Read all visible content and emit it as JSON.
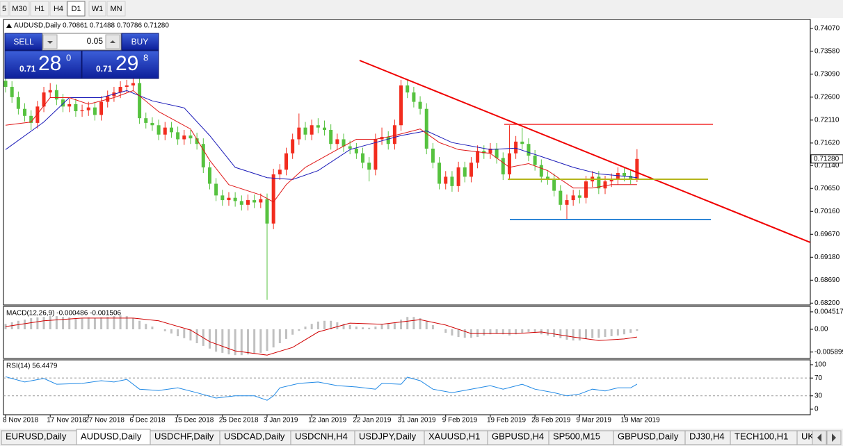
{
  "toolbar": [
    "5",
    "M30",
    "H1",
    "H4",
    "D1",
    "W1",
    "MN"
  ],
  "trade_panel": {
    "sell": "SELL",
    "lot": "0.05",
    "buy": "BUY",
    "bid": {
      "prefix": "0.71",
      "big": "28",
      "sup": "0"
    },
    "ask": {
      "prefix": "0.71",
      "big": "29",
      "sup": "8"
    }
  },
  "chart_data": {
    "type": "candlestick",
    "header": "AUDUSD,Daily  0.70861 0.71488 0.70786 0.71280",
    "up_color": "#f22c1e",
    "down_color": "#56c23f",
    "xlim": [
      -0.33,
      126.17
    ],
    "ylim": [
      0.6816,
      0.7426
    ],
    "yticks": [
      {
        "value": 0.7407,
        "label": "0.74070"
      },
      {
        "value": 0.7358,
        "label": "0.73580"
      },
      {
        "value": 0.7309,
        "label": "0.73090"
      },
      {
        "value": 0.726,
        "label": "0.72600"
      },
      {
        "value": 0.7211,
        "label": "0.72110"
      },
      {
        "value": 0.7162,
        "label": "0.71620"
      },
      {
        "value": 0.7114,
        "label": "0.71140"
      },
      {
        "value": 0.7065,
        "label": "0.70650"
      },
      {
        "value": 0.7016,
        "label": "0.70160"
      },
      {
        "value": 0.6967,
        "label": "0.69670"
      },
      {
        "value": 0.6918,
        "label": "0.69180"
      },
      {
        "value": 0.6869,
        "label": "0.68690"
      },
      {
        "value": 0.682,
        "label": "0.68200"
      }
    ],
    "last_price": {
      "value": 0.7128,
      "label": "0.71280"
    },
    "xticks": [
      {
        "value": 0,
        "label": "8 Nov 2018"
      },
      {
        "value": 7,
        "label": "17 Nov 2018"
      },
      {
        "value": 13,
        "label": "27 Nov 2018"
      },
      {
        "value": 20,
        "label": "6 Dec 2018"
      },
      {
        "value": 27,
        "label": "15 Dec 2018"
      },
      {
        "value": 34,
        "label": "25 Dec 2018"
      },
      {
        "value": 41,
        "label": "3 Jan 2019"
      },
      {
        "value": 48,
        "label": "12 Jan 2019"
      },
      {
        "value": 55,
        "label": "22 Jan 2019"
      },
      {
        "value": 62,
        "label": "31 Jan 2019"
      },
      {
        "value": 69,
        "label": "9 Feb 2019"
      },
      {
        "value": 76,
        "label": "19 Feb 2019"
      },
      {
        "value": 83,
        "label": "28 Feb 2019"
      },
      {
        "value": 90,
        "label": "9 Mar 2019"
      },
      {
        "value": 97,
        "label": "19 Mar 2019"
      }
    ],
    "ohlc": [
      [
        0.7295,
        0.7305,
        0.727,
        0.7282
      ],
      [
        0.7282,
        0.7294,
        0.7248,
        0.726
      ],
      [
        0.726,
        0.7272,
        0.7223,
        0.7235
      ],
      [
        0.7235,
        0.7247,
        0.7208,
        0.722
      ],
      [
        0.722,
        0.7232,
        0.719,
        0.7205
      ],
      [
        0.7205,
        0.7252,
        0.7193,
        0.724
      ],
      [
        0.724,
        0.7282,
        0.7228,
        0.727
      ],
      [
        0.727,
        0.729,
        0.7258,
        0.7275
      ],
      [
        0.7275,
        0.7287,
        0.7243,
        0.7255
      ],
      [
        0.7255,
        0.7267,
        0.7228,
        0.724
      ],
      [
        0.724,
        0.7257,
        0.7228,
        0.7245
      ],
      [
        0.7245,
        0.7257,
        0.7218,
        0.723
      ],
      [
        0.723,
        0.7244,
        0.7218,
        0.7232
      ],
      [
        0.7232,
        0.725,
        0.722,
        0.7238
      ],
      [
        0.7238,
        0.725,
        0.721,
        0.7222
      ],
      [
        0.7222,
        0.7262,
        0.721,
        0.725
      ],
      [
        0.725,
        0.7274,
        0.7238,
        0.7262
      ],
      [
        0.7262,
        0.7282,
        0.725,
        0.727
      ],
      [
        0.727,
        0.7294,
        0.7258,
        0.7282
      ],
      [
        0.7282,
        0.7297,
        0.727,
        0.7285
      ],
      [
        0.7285,
        0.7302,
        0.7273,
        0.729
      ],
      [
        0.729,
        0.7302,
        0.7203,
        0.7215
      ],
      [
        0.7215,
        0.7227,
        0.7193,
        0.7205
      ],
      [
        0.7205,
        0.7217,
        0.7188,
        0.72
      ],
      [
        0.72,
        0.7212,
        0.7168,
        0.718
      ],
      [
        0.718,
        0.7207,
        0.7168,
        0.7195
      ],
      [
        0.7195,
        0.7207,
        0.7173,
        0.7185
      ],
      [
        0.7185,
        0.7197,
        0.7158,
        0.717
      ],
      [
        0.717,
        0.719,
        0.7158,
        0.7178
      ],
      [
        0.7178,
        0.719,
        0.716,
        0.7172
      ],
      [
        0.7172,
        0.7184,
        0.7148,
        0.716
      ],
      [
        0.716,
        0.7172,
        0.7098,
        0.711
      ],
      [
        0.711,
        0.7122,
        0.7063,
        0.7075
      ],
      [
        0.7075,
        0.7087,
        0.7038,
        0.705
      ],
      [
        0.705,
        0.7062,
        0.7028,
        0.704
      ],
      [
        0.704,
        0.7057,
        0.7028,
        0.7045
      ],
      [
        0.7045,
        0.7057,
        0.7026,
        0.7038
      ],
      [
        0.7038,
        0.705,
        0.7018,
        0.703
      ],
      [
        0.703,
        0.7052,
        0.7018,
        0.704
      ],
      [
        0.704,
        0.7052,
        0.7023,
        0.7035
      ],
      [
        0.7035,
        0.7054,
        0.7023,
        0.7042
      ],
      [
        0.7042,
        0.7054,
        0.6827,
        0.699
      ],
      [
        0.699,
        0.7107,
        0.6978,
        0.7095
      ],
      [
        0.7095,
        0.7117,
        0.7083,
        0.7105
      ],
      [
        0.7105,
        0.7152,
        0.7093,
        0.714
      ],
      [
        0.714,
        0.7182,
        0.7128,
        0.717
      ],
      [
        0.717,
        0.7225,
        0.7158,
        0.7195
      ],
      [
        0.7195,
        0.7207,
        0.7168,
        0.718
      ],
      [
        0.718,
        0.7212,
        0.7168,
        0.72
      ],
      [
        0.72,
        0.7215,
        0.7183,
        0.7195
      ],
      [
        0.7195,
        0.721,
        0.7178,
        0.719
      ],
      [
        0.719,
        0.7202,
        0.7148,
        0.716
      ],
      [
        0.716,
        0.7182,
        0.7148,
        0.717
      ],
      [
        0.717,
        0.7182,
        0.7143,
        0.7155
      ],
      [
        0.7155,
        0.7167,
        0.7138,
        0.715
      ],
      [
        0.715,
        0.7162,
        0.7128,
        0.714
      ],
      [
        0.714,
        0.7152,
        0.7108,
        0.712
      ],
      [
        0.712,
        0.7132,
        0.708,
        0.7105
      ],
      [
        0.7105,
        0.7182,
        0.7093,
        0.717
      ],
      [
        0.717,
        0.7195,
        0.7158,
        0.7175
      ],
      [
        0.7175,
        0.7187,
        0.7148,
        0.716
      ],
      [
        0.716,
        0.7212,
        0.7148,
        0.72
      ],
      [
        0.72,
        0.7297,
        0.7188,
        0.7285
      ],
      [
        0.7285,
        0.7297,
        0.7258,
        0.727
      ],
      [
        0.727,
        0.7282,
        0.7238,
        0.725
      ],
      [
        0.725,
        0.7262,
        0.7223,
        0.7235
      ],
      [
        0.7235,
        0.7247,
        0.7138,
        0.715
      ],
      [
        0.715,
        0.7162,
        0.7108,
        0.712
      ],
      [
        0.712,
        0.7132,
        0.7063,
        0.7075
      ],
      [
        0.7075,
        0.7102,
        0.7063,
        0.709
      ],
      [
        0.709,
        0.7102,
        0.7058,
        0.707
      ],
      [
        0.707,
        0.7122,
        0.7058,
        0.711
      ],
      [
        0.711,
        0.7122,
        0.7078,
        0.709
      ],
      [
        0.709,
        0.7132,
        0.7078,
        0.712
      ],
      [
        0.712,
        0.7157,
        0.7108,
        0.7145
      ],
      [
        0.7145,
        0.7157,
        0.7128,
        0.714
      ],
      [
        0.714,
        0.7162,
        0.7128,
        0.715
      ],
      [
        0.715,
        0.7162,
        0.7118,
        0.713
      ],
      [
        0.713,
        0.7142,
        0.7083,
        0.7095
      ],
      [
        0.7095,
        0.72,
        0.7083,
        0.714
      ],
      [
        0.714,
        0.7177,
        0.7128,
        0.7165
      ],
      [
        0.7165,
        0.7195,
        0.7148,
        0.716
      ],
      [
        0.716,
        0.7172,
        0.7123,
        0.7135
      ],
      [
        0.7135,
        0.7147,
        0.7103,
        0.7115
      ],
      [
        0.7115,
        0.7127,
        0.7078,
        0.709
      ],
      [
        0.709,
        0.7102,
        0.7073,
        0.7085
      ],
      [
        0.7085,
        0.7097,
        0.7048,
        0.706
      ],
      [
        0.706,
        0.7072,
        0.7018,
        0.703
      ],
      [
        0.703,
        0.7052,
        0.7,
        0.704
      ],
      [
        0.704,
        0.7062,
        0.7028,
        0.705
      ],
      [
        0.705,
        0.7062,
        0.7033,
        0.7045
      ],
      [
        0.7045,
        0.7092,
        0.7033,
        0.708
      ],
      [
        0.708,
        0.7102,
        0.7068,
        0.709
      ],
      [
        0.709,
        0.7102,
        0.7053,
        0.7065
      ],
      [
        0.7065,
        0.7092,
        0.7053,
        0.708
      ],
      [
        0.708,
        0.7097,
        0.7068,
        0.7085
      ],
      [
        0.7085,
        0.711,
        0.7073,
        0.7098
      ],
      [
        0.7098,
        0.711,
        0.708,
        0.7092
      ],
      [
        0.7092,
        0.7104,
        0.7074,
        0.7086
      ],
      [
        0.70861,
        0.71488,
        0.70786,
        0.7128
      ]
    ],
    "ma": [
      {
        "color": "#1a1ab8",
        "x": [
          0,
          6,
          10,
          15,
          19,
          23,
          28,
          32,
          36,
          41,
          45,
          49,
          54,
          58,
          62,
          66,
          70,
          76,
          80,
          84,
          89,
          93,
          97,
          99
        ],
        "values": [
          0.7148,
          0.7207,
          0.7259,
          0.7259,
          0.7274,
          0.7252,
          0.7237,
          0.7178,
          0.711,
          0.7088,
          0.7084,
          0.7103,
          0.7148,
          0.7163,
          0.7178,
          0.7188,
          0.7163,
          0.7148,
          0.7151,
          0.7133,
          0.711,
          0.7096,
          0.7091,
          0.7088
        ]
      },
      {
        "color": "#e01818",
        "x": [
          0,
          4,
          7,
          10,
          13,
          17,
          20,
          24,
          29,
          32,
          35,
          40,
          42,
          44,
          47,
          52,
          55,
          58,
          61,
          65,
          68,
          71,
          76,
          79,
          82,
          85,
          89,
          92,
          95,
          99
        ],
        "values": [
          0.72,
          0.7207,
          0.7259,
          0.7259,
          0.7245,
          0.7259,
          0.7274,
          0.7229,
          0.7192,
          0.7125,
          0.7073,
          0.7051,
          0.7036,
          0.7073,
          0.711,
          0.7148,
          0.717,
          0.717,
          0.7178,
          0.7192,
          0.7163,
          0.7148,
          0.714,
          0.711,
          0.7118,
          0.7103,
          0.7066,
          0.7066,
          0.7073,
          0.7073
        ]
      }
    ],
    "macd": {
      "title": "MACD(12,26,9) -0.000486 -0.001506",
      "hist_color": "#c0c0c0",
      "ylim": [
        -0.00756,
        0.00594
      ],
      "yticks": [
        0.004517,
        {
          "value": 0,
          "label": "0.00"
        },
        -0.005899
      ],
      "histogram": [
        0.0014,
        0.0018,
        0.0022,
        0.0025,
        0.0029,
        0.0031,
        0.0032,
        0.0034,
        0.0034,
        0.0032,
        0.0031,
        0.0029,
        0.0029,
        0.0031,
        0.0029,
        0.0031,
        0.0032,
        0.0034,
        0.0036,
        0.0034,
        0.0029,
        0.0022,
        0.0014,
        0.0007,
        0,
        -0.0005,
        -0.0011,
        -0.0018,
        -0.0023,
        -0.0029,
        -0.0036,
        -0.0043,
        -0.005,
        -0.0058,
        -0.0061,
        -0.0065,
        -0.0067,
        -0.0067,
        -0.0065,
        -0.0063,
        -0.0061,
        -0.0056,
        -0.0047,
        -0.0036,
        -0.0025,
        -0.0014,
        -0.0004,
        0.0007,
        0.0014,
        0.002,
        0.0022,
        0.0022,
        0.0018,
        0.0014,
        0.0011,
        0.0007,
        0.0005,
        0.0004,
        0.0007,
        0.0013,
        0.0014,
        0.0016,
        0.0025,
        0.0032,
        0.0032,
        0.0029,
        0.0022,
        0.0011,
        0,
        -0.0009,
        -0.0016,
        -0.002,
        -0.0022,
        -0.0022,
        -0.002,
        -0.0016,
        -0.0013,
        -0.0011,
        -0.0013,
        -0.0016,
        -0.0013,
        -0.0009,
        -0.0007,
        -0.0009,
        -0.0013,
        -0.0016,
        -0.002,
        -0.0023,
        -0.0027,
        -0.0029,
        -0.0029,
        -0.0025,
        -0.0023,
        -0.0022,
        -0.002,
        -0.0018,
        -0.0016,
        -0.0013,
        -0.0009,
        -0.0004
      ],
      "signal": {
        "color": "#d00000",
        "x": [
          0,
          6,
          12,
          20,
          24,
          29,
          32,
          36,
          41,
          45,
          49,
          54,
          59,
          65,
          69,
          73,
          80,
          84,
          89,
          93,
          97,
          99
        ],
        "values": [
          0.0007,
          0.0022,
          0.0029,
          0.0029,
          0.0022,
          -0.0002,
          -0.0032,
          -0.0056,
          -0.0067,
          -0.0047,
          -0.0007,
          0.0016,
          0.0013,
          0.0025,
          0.0011,
          -0.0011,
          -0.0011,
          -0.0007,
          -0.002,
          -0.0029,
          -0.0025,
          -0.002
        ]
      }
    },
    "rsi": {
      "title": "RSI(14) 56.4479",
      "color": "#1e88e5",
      "ylim": [
        -12.5,
        110.9
      ],
      "yticks": [
        100,
        70,
        30,
        0
      ],
      "levels": [
        70,
        30
      ],
      "x": [
        0,
        3,
        6,
        8,
        12,
        15,
        17,
        19,
        21,
        24,
        27,
        30,
        33,
        36,
        39,
        41,
        42,
        43,
        46,
        49,
        52,
        55,
        58,
        59,
        62,
        63,
        65,
        67,
        70,
        73,
        76,
        78,
        81,
        83,
        86,
        88,
        90,
        92,
        94,
        96,
        98,
        99
      ],
      "values": [
        73,
        61,
        69,
        56,
        58,
        64,
        61,
        67,
        45,
        42,
        48,
        37,
        25,
        30,
        30,
        20,
        30,
        48,
        58,
        61,
        53,
        50,
        45,
        58,
        56,
        72,
        64,
        45,
        37,
        45,
        53,
        45,
        56,
        45,
        37,
        30,
        34,
        45,
        41,
        48,
        48,
        56.4479
      ]
    }
  },
  "tabs": [
    "EURUSD,Daily",
    "AUDUSD,Daily",
    "USDCHF,Daily",
    "USDCAD,Daily",
    "USDCNH,H4",
    "USDJPY,Daily",
    "XAUUSD,H1",
    "GBPUSD,H4",
    "SP500,M15",
    "GBPUSD,Daily",
    "DJ30,H4",
    "TECH100,H1",
    "UKC"
  ]
}
